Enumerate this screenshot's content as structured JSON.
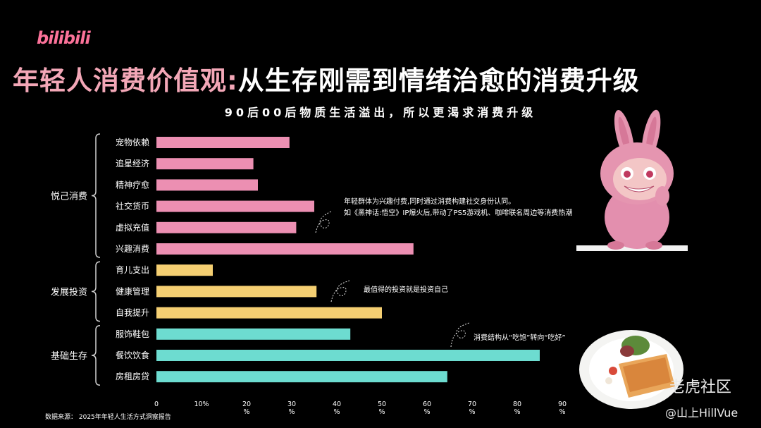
{
  "brand": "bilibili",
  "title_part1": "年轻人消费价值观:",
  "title_part2": "从生存刚需到情绪治愈的消费升级",
  "subtitle": "90后00后物质生活溢出，所以更渴求消费升级",
  "source": "数据来源：   2025年年轻人生活方式洞察报告",
  "watermark": "老虎社区",
  "credit": "@山上HillVue",
  "colors": {
    "pink": "#ec8fb2",
    "yellow": "#f5cf72",
    "teal": "#6ddcd0",
    "title_pink": "#f3a7b7"
  },
  "chart_data": {
    "type": "bar",
    "orientation": "horizontal",
    "xlim": [
      0,
      90
    ],
    "x_ticks": [
      [
        "0"
      ],
      [
        "10%"
      ],
      [
        "20",
        "%"
      ],
      [
        "30",
        "%"
      ],
      [
        "40",
        "%"
      ],
      [
        "50",
        "%"
      ],
      [
        "60",
        "%"
      ],
      [
        "70",
        "%"
      ],
      [
        "80",
        "%"
      ],
      [
        "90",
        "%"
      ]
    ],
    "tick_values": [
      0,
      10,
      20,
      30,
      40,
      50,
      60,
      70,
      80,
      90
    ],
    "grid": false,
    "groups": [
      {
        "name": "悦己消费",
        "color": "pink",
        "categories": [
          "宠物依赖",
          "追星经济",
          "精神疗愈",
          "社交货币",
          "虚拟充值",
          "兴趣消费"
        ],
        "values": [
          29.5,
          21.5,
          22.5,
          35,
          31,
          57
        ]
      },
      {
        "name": "发展投资",
        "color": "yellow",
        "categories": [
          "育儿支出",
          "健康管理",
          "自我提升"
        ],
        "values": [
          12.5,
          35.5,
          50
        ]
      },
      {
        "name": "基础生存",
        "color": "teal",
        "categories": [
          "服饰鞋包",
          "餐饮饮食",
          "房租房贷"
        ],
        "values": [
          43,
          85,
          64.5
        ]
      }
    ],
    "annotations": [
      {
        "lines": [
          "年轻群体为兴趣付费,同时通过消费构建社交身份认同。",
          "如《黑神话:悟空》IP爆火后,带动了PS5游戏机、咖啡联名周边等消费热潮"
        ]
      },
      {
        "lines": [
          "最值得的投资就是投资自己"
        ]
      },
      {
        "lines": [
          "消费结构从“吃饱”转向“吃好”"
        ]
      }
    ]
  }
}
